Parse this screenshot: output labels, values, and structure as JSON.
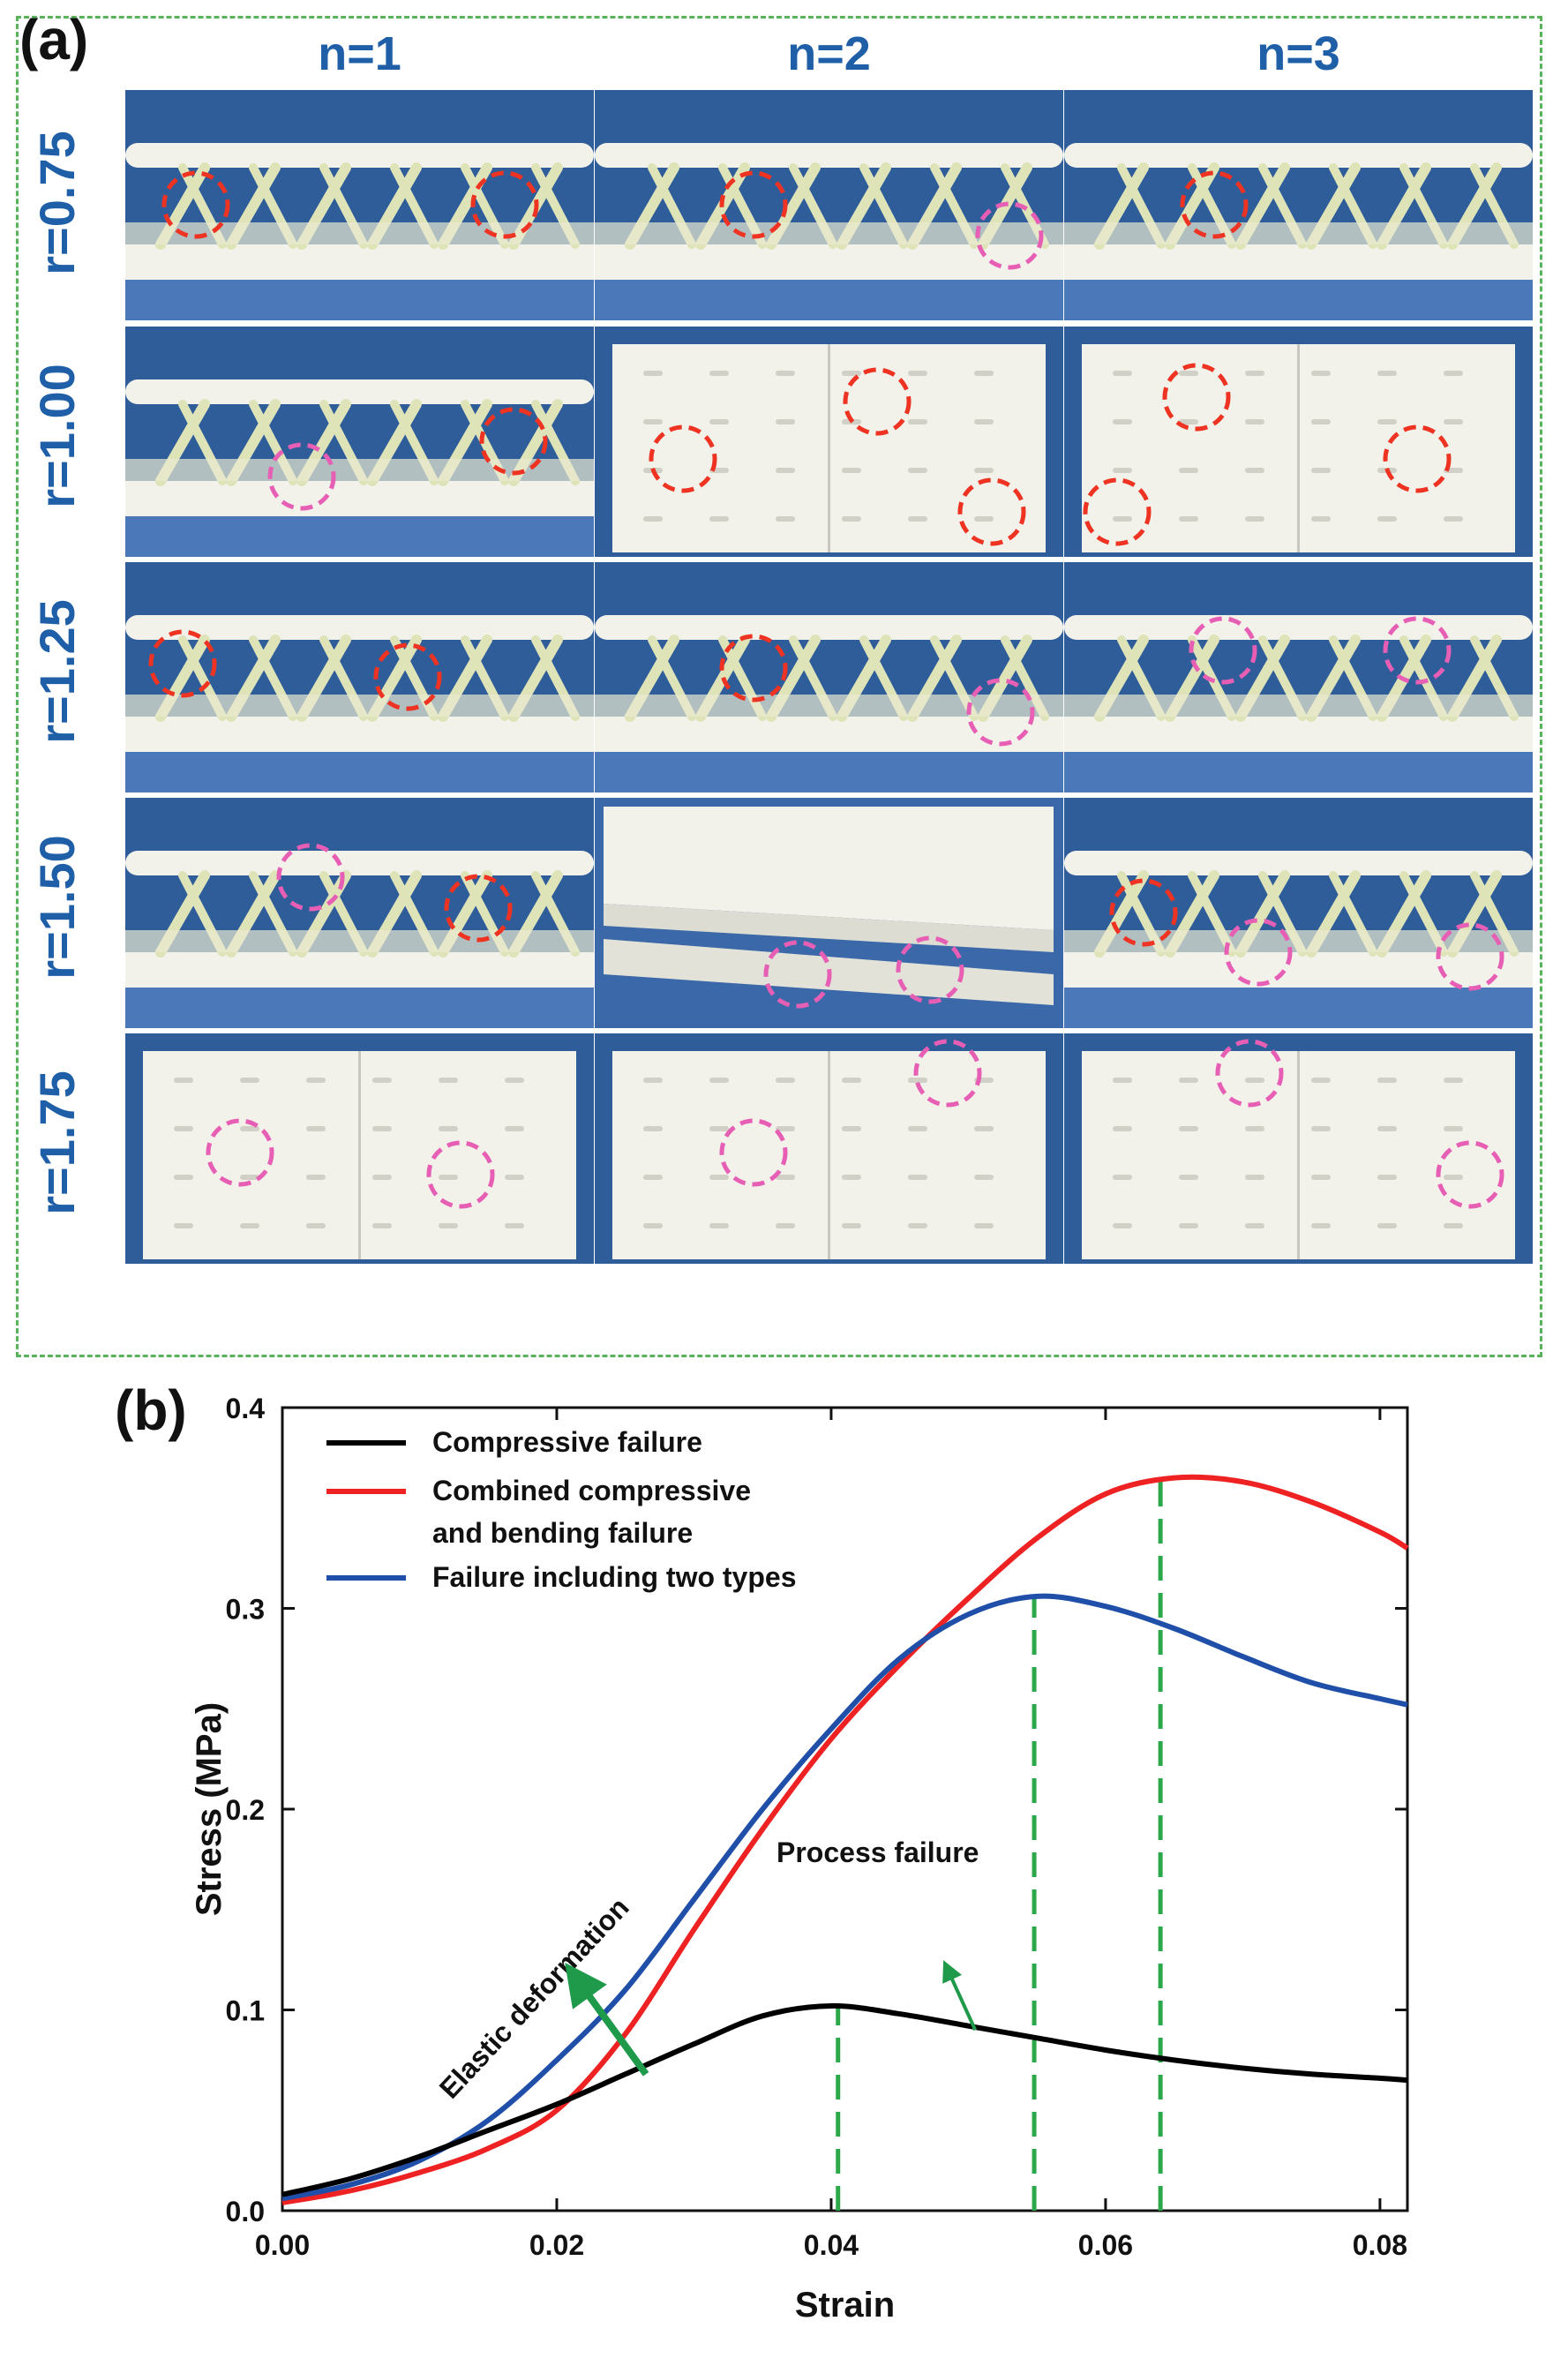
{
  "panel_a": {
    "label": "(a)",
    "columns": [
      "n=1",
      "n=2",
      "n=3"
    ],
    "rows": [
      "r=0.75",
      "r=1.00",
      "r=1.25",
      "r=1.50",
      "r=1.75"
    ],
    "photo_grid": [
      [
        "side",
        "side",
        "side"
      ],
      [
        "side",
        "top",
        "top"
      ],
      [
        "side",
        "side",
        "side"
      ],
      [
        "side",
        "slab",
        "side"
      ],
      [
        "top",
        "top",
        "top"
      ]
    ],
    "colors": {
      "border": "#59b35a",
      "label_blue": "#1f5fa8",
      "background_blue": "#2f5d9a",
      "specimen": "#f2f2ea",
      "lattice": "#dfe3b8",
      "circle_red": "#ee3322",
      "circle_pink": "#e75fb5"
    }
  },
  "chart_data": {
    "type": "line",
    "panel_label": "(b)",
    "xlabel": "Strain",
    "ylabel": "Stress (MPa)",
    "xlim": [
      0.0,
      0.082
    ],
    "ylim": [
      0.0,
      0.4
    ],
    "xticks": [
      "0.00",
      "0.02",
      "0.04",
      "0.06",
      "0.08"
    ],
    "yticks": [
      "0.0",
      "0.1",
      "0.2",
      "0.3",
      "0.4"
    ],
    "legend_position": "top-left",
    "series": [
      {
        "name": "Compressive failure",
        "color": "#000000",
        "x": [
          0.0,
          0.005,
          0.01,
          0.015,
          0.02,
          0.025,
          0.03,
          0.035,
          0.04,
          0.045,
          0.05,
          0.055,
          0.06,
          0.065,
          0.07,
          0.075,
          0.08,
          0.082
        ],
        "y": [
          0.008,
          0.016,
          0.027,
          0.04,
          0.053,
          0.068,
          0.083,
          0.097,
          0.102,
          0.098,
          0.092,
          0.086,
          0.08,
          0.075,
          0.071,
          0.068,
          0.066,
          0.065
        ]
      },
      {
        "name": "Combined compressive",
        "name_line2": "and bending failure",
        "color": "#ee2222",
        "x": [
          0.0,
          0.005,
          0.01,
          0.015,
          0.02,
          0.025,
          0.03,
          0.035,
          0.04,
          0.045,
          0.05,
          0.055,
          0.06,
          0.065,
          0.07,
          0.075,
          0.08,
          0.082
        ],
        "y": [
          0.004,
          0.01,
          0.019,
          0.031,
          0.05,
          0.088,
          0.14,
          0.19,
          0.235,
          0.272,
          0.305,
          0.335,
          0.357,
          0.365,
          0.363,
          0.353,
          0.338,
          0.33
        ]
      },
      {
        "name": "Failure including two types",
        "color": "#1f4fa8",
        "x": [
          0.0,
          0.005,
          0.01,
          0.015,
          0.02,
          0.025,
          0.03,
          0.035,
          0.04,
          0.045,
          0.05,
          0.055,
          0.06,
          0.065,
          0.07,
          0.075,
          0.08,
          0.082
        ],
        "y": [
          0.006,
          0.013,
          0.025,
          0.045,
          0.075,
          0.11,
          0.155,
          0.2,
          0.24,
          0.275,
          0.297,
          0.306,
          0.301,
          0.29,
          0.276,
          0.263,
          0.255,
          0.252
        ]
      }
    ],
    "vlines": [
      0.0405,
      0.0548,
      0.064
    ],
    "vline_color": "#2ca84a",
    "annotations": {
      "elastic": "Elastic deformation",
      "process": "Process failure"
    }
  }
}
